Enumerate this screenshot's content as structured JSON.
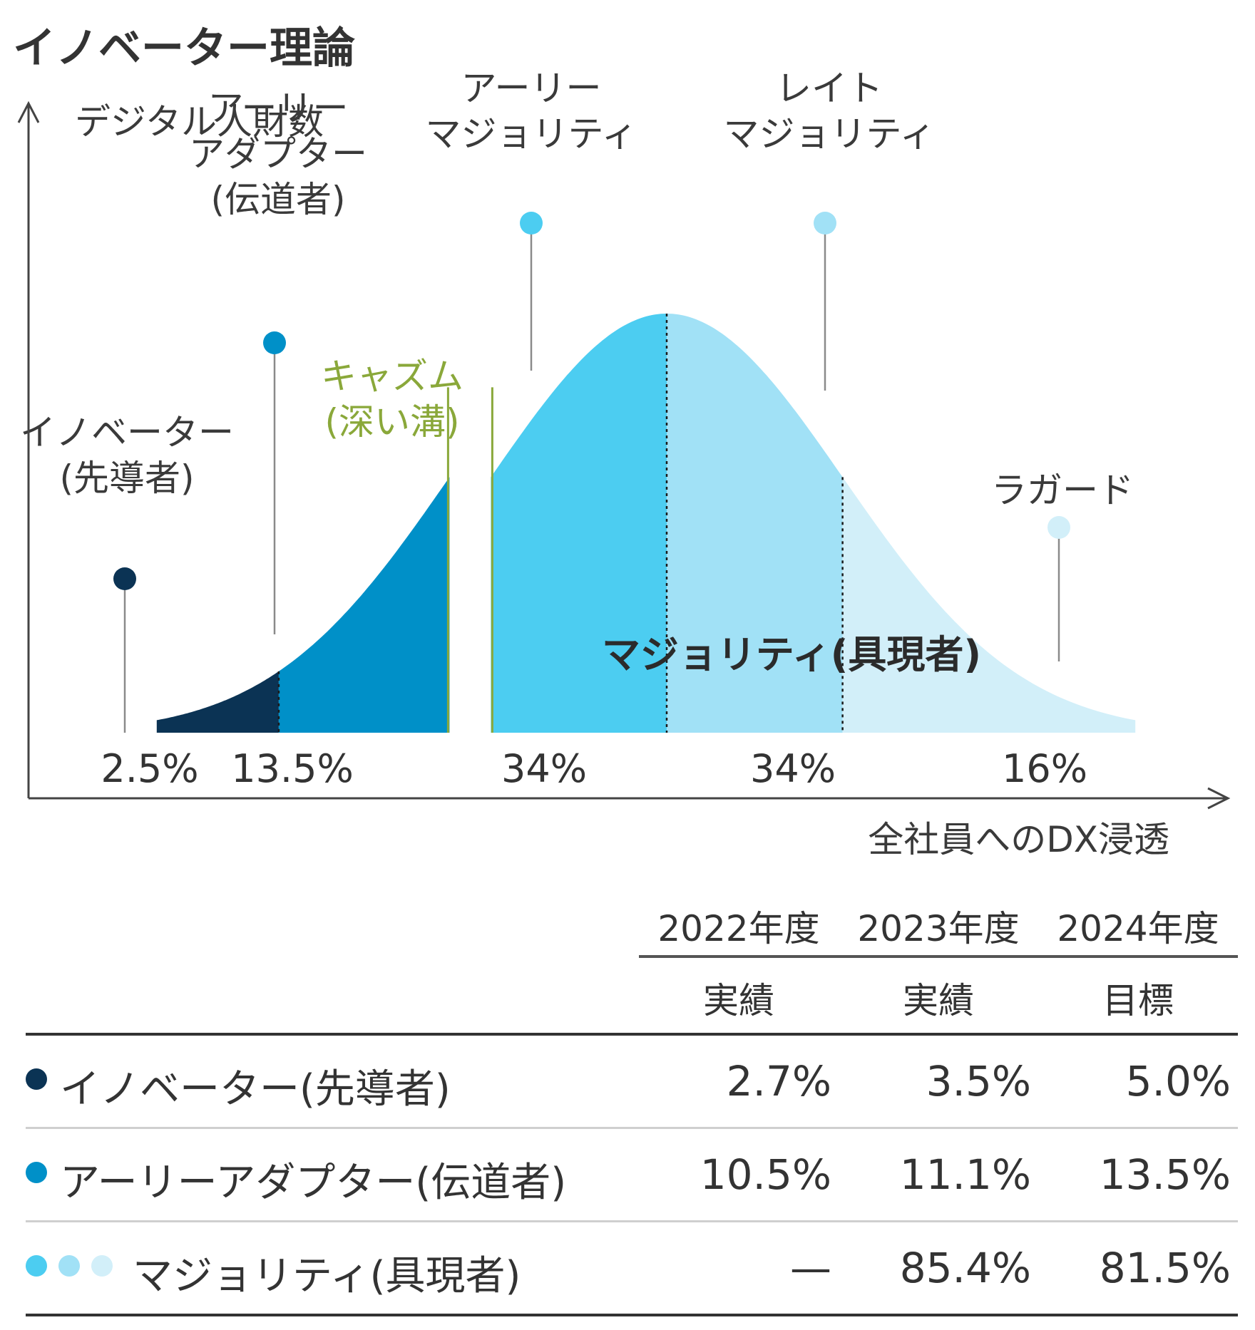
{
  "title": "イノベーター理論",
  "colors": {
    "innovator": "#0b3354",
    "early_adopter": "#0090c8",
    "early_majority": "#4ccdf1",
    "late_majority": "#a1e1f6",
    "laggard": "#d2eff9",
    "chasm": "#8aa83a"
  },
  "chart_data": {
    "type": "area",
    "title": "イノベーター理論",
    "ylabel": "デジタル人財数",
    "xlabel": "全社員へのDX浸透",
    "segments": [
      {
        "name": "イノベーター(先導者)",
        "label_lines": [
          "イノベーター",
          "(先導者)"
        ],
        "share": "2.5%",
        "value": 2.5
      },
      {
        "name": "アーリーアダプター(伝道者)",
        "label_lines": [
          "アーリー",
          "アダプター",
          "(伝道者)"
        ],
        "share": "13.5%",
        "value": 13.5
      },
      {
        "name": "アーリーマジョリティ",
        "label_lines": [
          "アーリー",
          "マジョリティ"
        ],
        "share": "34%",
        "value": 34
      },
      {
        "name": "レイトマジョリティ",
        "label_lines": [
          "レイト",
          "マジョリティ"
        ],
        "share": "34%",
        "value": 34
      },
      {
        "name": "ラガード",
        "label_lines": [
          "ラガード"
        ],
        "share": "16%",
        "value": 16
      }
    ],
    "chasm_label_lines": [
      "キャズム",
      "(深い溝)"
    ],
    "majority_label": "マジョリティ(具現者)"
  },
  "table": {
    "years": [
      "2022年度",
      "2023年度",
      "2024年度"
    ],
    "kinds": [
      "実績",
      "実績",
      "目標"
    ],
    "rows": [
      {
        "label": "イノベーター(先導者)",
        "dots": [
          "#0b3354"
        ],
        "values": [
          "2.7%",
          "3.5%",
          "5.0%"
        ]
      },
      {
        "label": "アーリーアダプター(伝道者)",
        "dots": [
          "#0090c8"
        ],
        "values": [
          "10.5%",
          "11.1%",
          "13.5%"
        ]
      },
      {
        "label": "マジョリティ(具現者)",
        "dots": [
          "#4ccdf1",
          "#a1e1f6",
          "#d2eff9"
        ],
        "values": [
          "—",
          "85.4%",
          "81.5%"
        ]
      }
    ]
  }
}
